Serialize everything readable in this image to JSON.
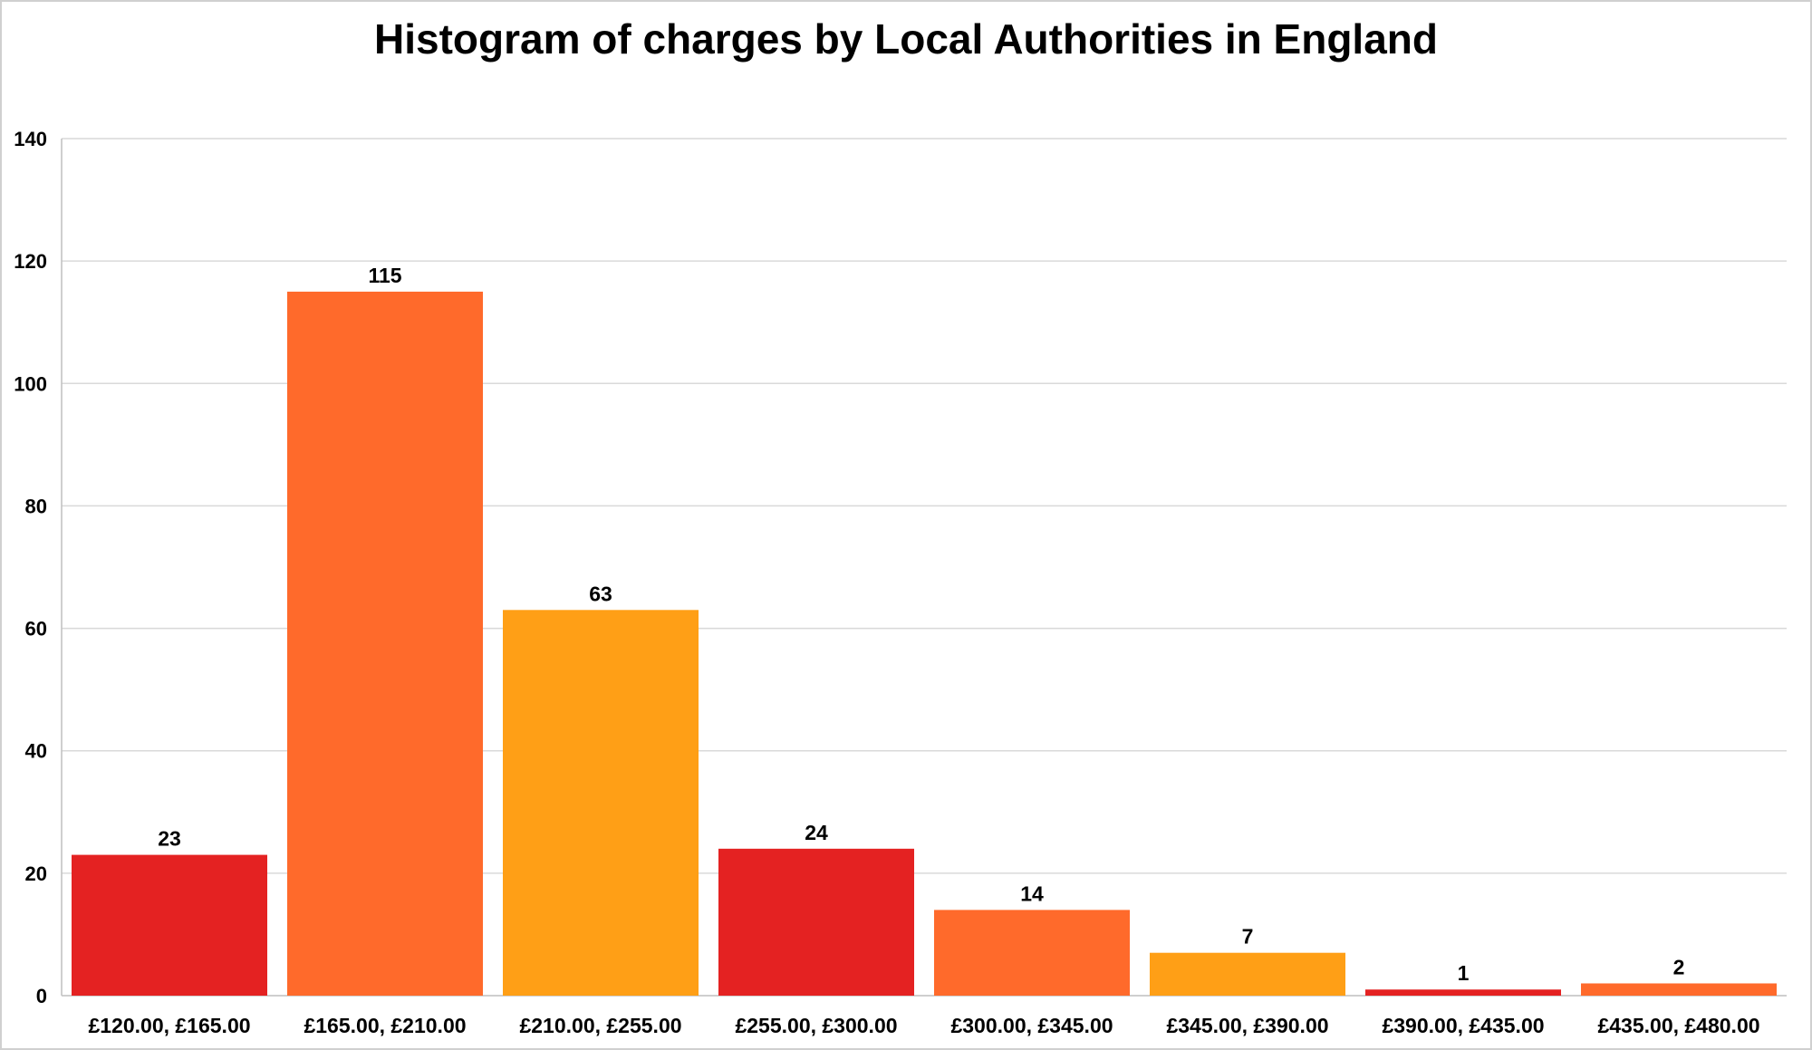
{
  "chart_data": {
    "type": "bar",
    "title": "Histogram of charges by Local Authorities in England",
    "xlabel": "",
    "ylabel": "",
    "categories": [
      "£120.00, £165.00",
      "£165.00, £210.00",
      "£210.00, £255.00",
      "£255.00, £300.00",
      "£300.00, £345.00",
      "£345.00, £390.00",
      "£390.00, £435.00",
      "£435.00, £480.00"
    ],
    "values": [
      23,
      115,
      63,
      24,
      14,
      7,
      1,
      2
    ],
    "data_labels": [
      "23",
      "115",
      "63",
      "24",
      "14",
      "7",
      "1",
      "2"
    ],
    "bar_colors": [
      "#e42222",
      "#ff6a2b",
      "#ff9f16",
      "#e42222",
      "#ff6a2b",
      "#ff9f16",
      "#e42222",
      "#ff6a2b"
    ],
    "ylim": [
      0,
      140
    ],
    "yticks": [
      0,
      20,
      40,
      60,
      80,
      100,
      120,
      140
    ],
    "grid": true,
    "legend": "none"
  }
}
